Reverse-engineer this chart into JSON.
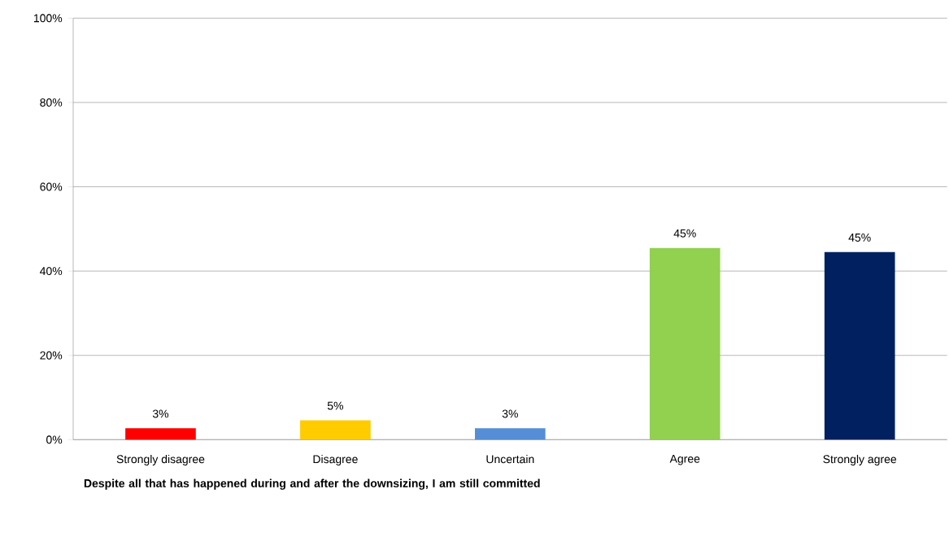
{
  "chart_data": {
    "type": "bar",
    "xlabel": "Despite all that has happened during and after the downsizing, I am still committed",
    "categories": [
      "Strongly disagree",
      "Disagree",
      "Uncertain",
      "Agree",
      "Strongly agree"
    ],
    "values": [
      2.7,
      4.6,
      2.7,
      45.5,
      44.5
    ],
    "value_labels": [
      "3%",
      "5%",
      "3%",
      "45%",
      "45%"
    ],
    "colors": [
      "#ff0000",
      "#ffcc00",
      "#558ed5",
      "#92d050",
      "#002060"
    ],
    "ylim": [
      0,
      100
    ],
    "yticks": [
      {
        "value": 0,
        "label": "0%"
      },
      {
        "value": 20,
        "label": "20%"
      },
      {
        "value": 40,
        "label": "40%"
      },
      {
        "value": 60,
        "label": "60%"
      },
      {
        "value": 80,
        "label": "80%"
      },
      {
        "value": 100,
        "label": "100%"
      }
    ],
    "grid": "y"
  }
}
